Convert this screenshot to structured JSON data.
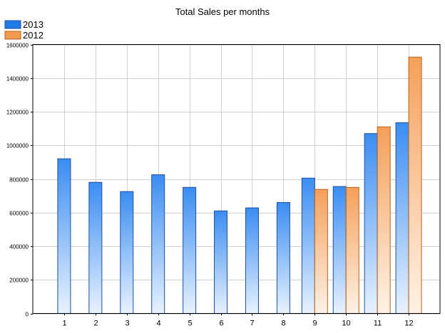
{
  "chart_data": {
    "type": "bar",
    "title": "Total Sales per months",
    "xlabel": "",
    "ylabel": "",
    "categories": [
      "1",
      "2",
      "3",
      "4",
      "5",
      "6",
      "7",
      "8",
      "9",
      "10",
      "11",
      "12"
    ],
    "series": [
      {
        "name": "2013",
        "color": "#3d8ef0",
        "border": "#1f4fa0",
        "values": [
          920000,
          780000,
          725000,
          825000,
          750000,
          610000,
          628000,
          660000,
          805000,
          755000,
          1070000,
          1135000
        ]
      },
      {
        "name": "2012",
        "color": "#f4a460",
        "border": "#b8621e",
        "values": [
          null,
          null,
          null,
          null,
          null,
          null,
          null,
          null,
          738000,
          750000,
          1110000,
          1525000
        ]
      }
    ],
    "ylim": [
      0,
      1600000
    ],
    "yticks": [
      "0",
      "200000",
      "400000",
      "600000",
      "800000",
      "1000000",
      "1200000",
      "1400000",
      "1600000"
    ],
    "grid": true,
    "legend": "top-left"
  }
}
